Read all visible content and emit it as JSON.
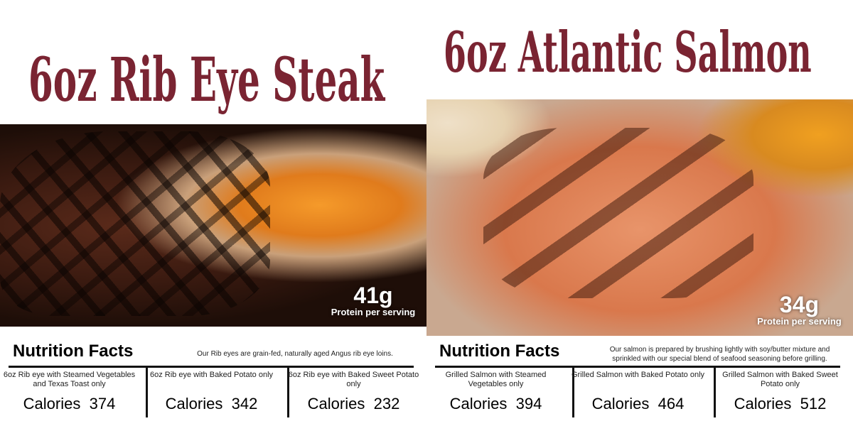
{
  "panels": [
    {
      "title": "6oz Rib Eye Steak",
      "protein_value": "41g",
      "protein_label": "Protein per serving",
      "nutrition_heading": "Nutrition Facts",
      "description": "Our Rib eyes are grain-fed, naturally aged Angus rib eye loins.",
      "options": [
        {
          "label": "6oz Rib eye with Steamed Vegetables and Texas Toast only",
          "calories": "Calories  374"
        },
        {
          "label": "6oz Rib eye with Baked Potato only",
          "calories": "Calories  342"
        },
        {
          "label": "6oz Rib eye with Baked Sweet Potato only",
          "calories": "Calories  232"
        }
      ]
    },
    {
      "title": "6oz Atlantic Salmon",
      "protein_value": "34g",
      "protein_label": "Protein per serving",
      "nutrition_heading": "Nutrition Facts",
      "description": "Our salmon is prepared by brushing lightly with soy/butter mixture and sprinkled with our special blend of seafood seasoning before grilling.",
      "options": [
        {
          "label": "Grilled Salmon with Steamed Vegetables only",
          "calories": "Calories  394"
        },
        {
          "label": "Grilled Salmon with Baked Potato only",
          "calories": "Calories  464"
        },
        {
          "label": "Grilled Salmon with Baked Sweet Potato only",
          "calories": "Calories  512"
        }
      ]
    }
  ],
  "colors": {
    "title": "#7a2432"
  }
}
